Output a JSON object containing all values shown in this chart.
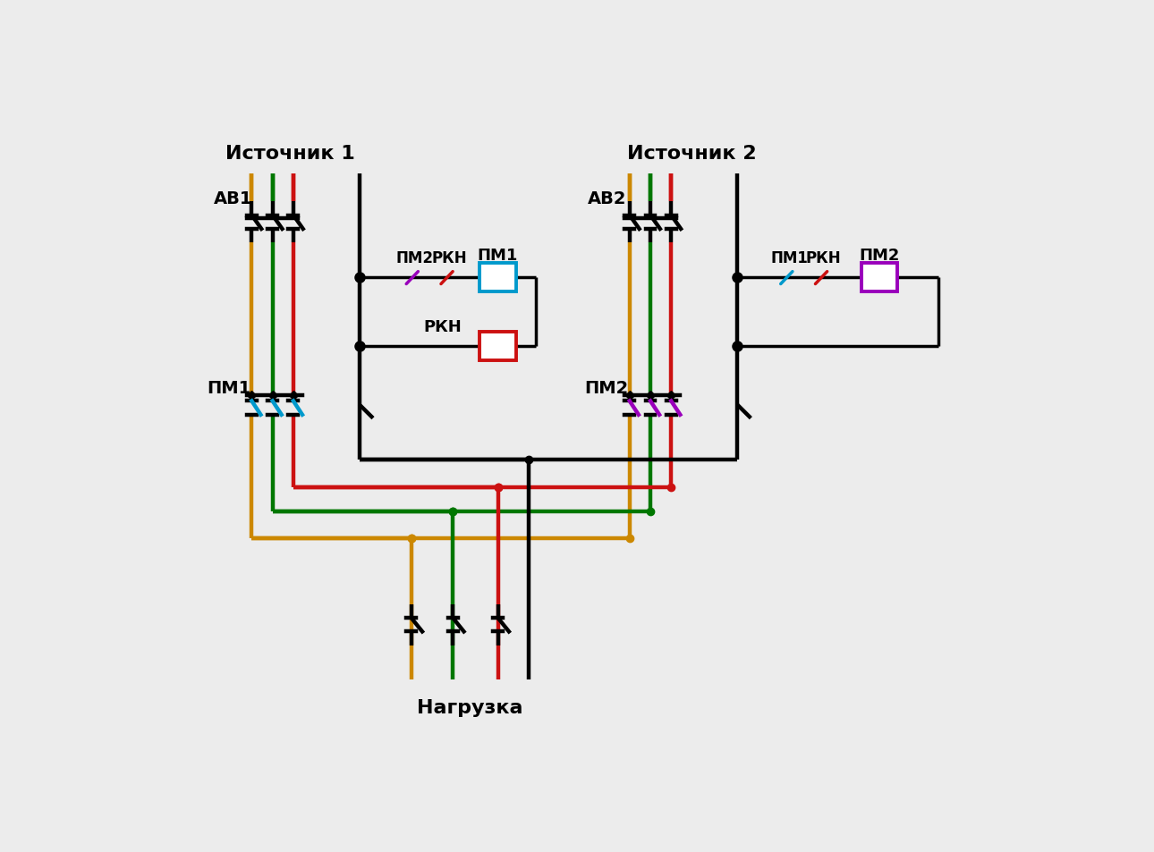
{
  "bg": "#ececec",
  "black": "#000000",
  "red": "#cc1111",
  "green": "#007700",
  "orange": "#cc8800",
  "blue": "#0099cc",
  "purple": "#9900bb",
  "title1": "Источник 1",
  "title2": "Источник 2",
  "lbl_av1": "АВ1",
  "lbl_av2": "АВ2",
  "lbl_pm1": "ПМ1",
  "lbl_pm2": "ПМ2",
  "lbl_rkn": "РКН",
  "lbl_nagr": "Нагрузка",
  "note_left_pm2": "ПМ2",
  "note_left_rkn": "РКН",
  "note_left_pm1box": "ПМ1",
  "note_left_rkn2": "РКН",
  "note_right_pm1": "ПМ1",
  "note_right_rkn": "РКН",
  "note_right_pm2box": "ПМ2"
}
